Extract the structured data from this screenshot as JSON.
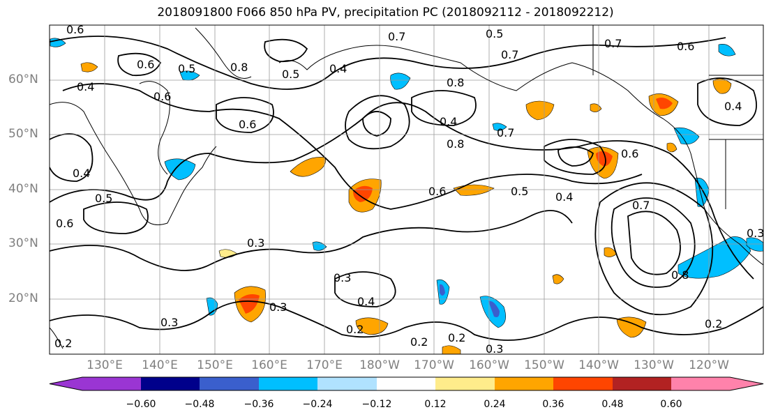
{
  "title": "2018091800 F066 850 hPa PV, precipitation PC (2018092112 - 2018092212)",
  "map": {
    "latitude_labels": [
      "60°N",
      "50°N",
      "40°N",
      "30°N",
      "20°N"
    ],
    "longitude_labels": [
      "130°E",
      "140°E",
      "150°E",
      "160°E",
      "170°E",
      "180°W",
      "170°W",
      "160°W",
      "150°W",
      "140°W",
      "130°W",
      "120°W"
    ],
    "contour_labels": [
      "0.6",
      "0.6",
      "0.5",
      "0.8",
      "0.4",
      "0.7",
      "0.5",
      "0.7",
      "0.8",
      "0.7",
      "0.6",
      "0.4",
      "0.4",
      "0.6",
      "0.8",
      "0.7",
      "0.6",
      "0.5",
      "0.4",
      "0.7",
      "0.6",
      "0.5",
      "0.6",
      "0.3",
      "0.3",
      "0.4",
      "0.2",
      "0.2",
      "0.2",
      "0.3",
      "0.3",
      "0.3",
      "0.2",
      "0.8",
      "0.3",
      "0.6",
      "0.4",
      "0.2",
      "0.5",
      "0.4"
    ]
  },
  "colorbar": {
    "colors": [
      "#9a35d3",
      "#00008b",
      "#3a5fcd",
      "#00bfff",
      "#b0e2ff",
      "#ffffff",
      "#ffec8b",
      "#ffa500",
      "#ff4500",
      "#b22222",
      "#ff82ab"
    ],
    "tick_labels": [
      "−0.60",
      "−0.48",
      "−0.36",
      "−0.24",
      "−0.12",
      "0.12",
      "0.24",
      "0.36",
      "0.48",
      "0.60"
    ]
  }
}
